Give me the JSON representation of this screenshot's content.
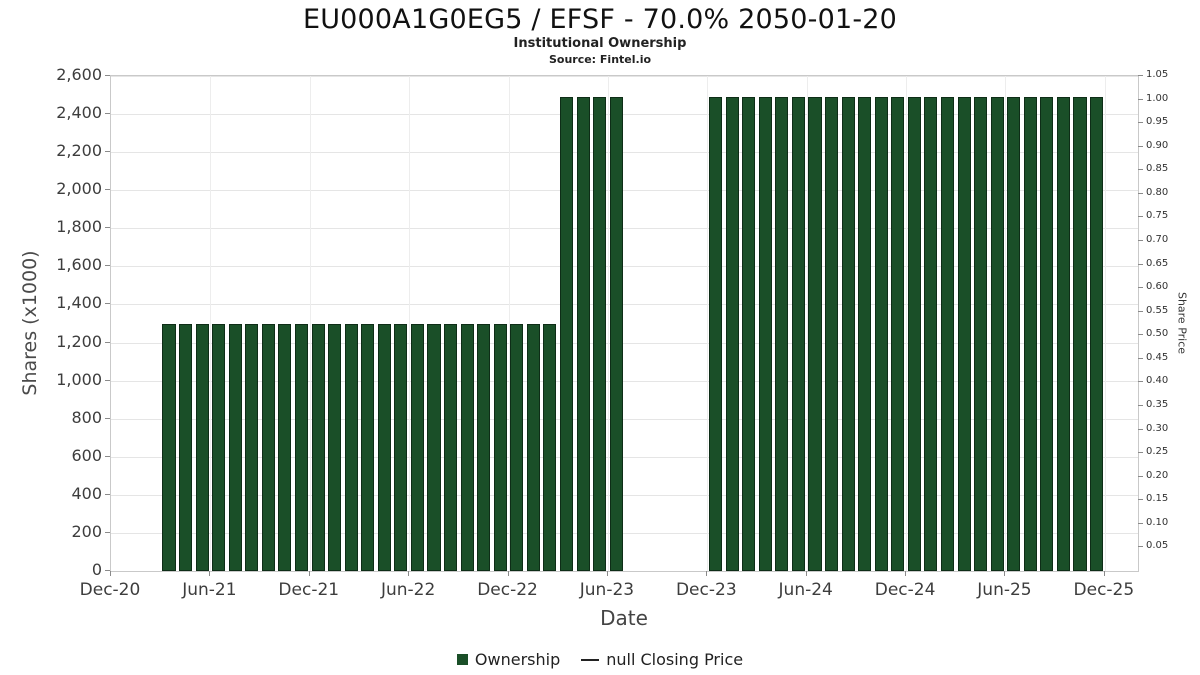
{
  "header": {
    "title": "EU000A1G0EG5 / EFSF - 70.0% 2050-01-20",
    "subtitle": "Institutional Ownership",
    "source": "Source: Fintel.io"
  },
  "axes": {
    "left_title": "Shares (x1000)",
    "right_title": "Share Price",
    "x_title": "Date"
  },
  "legend": {
    "ownership_label": "Ownership",
    "closing_price_label": "null Closing Price"
  },
  "colors": {
    "bar_fill": "#1a4f28",
    "bar_border": "#0e2d17",
    "legend_line": "#222222"
  },
  "chart_data": {
    "type": "bar",
    "title": "EU000A1G0EG5 / EFSF - 70.0% 2050-01-20",
    "subtitle": "Institutional Ownership",
    "source": "Source: Fintel.io",
    "xlabel": "Date",
    "ylabel_left": "Shares (x1000)",
    "ylabel_right": "Share Price",
    "y_left_max": 2600,
    "y_left_ticks": [
      "0",
      "200",
      "400",
      "600",
      "800",
      "1,000",
      "1,200",
      "1,400",
      "1,600",
      "1,800",
      "2,000",
      "2,200",
      "2,400",
      "2,600"
    ],
    "y_right_max": 1.05,
    "y_right_ticks": [
      "0.05",
      "0.10",
      "0.15",
      "0.20",
      "0.25",
      "0.30",
      "0.35",
      "0.40",
      "0.45",
      "0.50",
      "0.55",
      "0.60",
      "0.65",
      "0.70",
      "0.75",
      "0.80",
      "0.85",
      "0.90",
      "0.95",
      "1.00",
      "1.05"
    ],
    "x_ticks": [
      "Dec-20",
      "Jun-21",
      "Dec-21",
      "Jun-22",
      "Dec-22",
      "Jun-23",
      "Dec-23",
      "Jun-24",
      "Dec-24",
      "Jun-25",
      "Dec-25"
    ],
    "x_span_months": 62,
    "series": [
      {
        "name": "Ownership",
        "type": "bar",
        "points": [
          [
            "Mar-21",
            1300
          ],
          [
            "Apr-21",
            1300
          ],
          [
            "May-21",
            1300
          ],
          [
            "Jun-21",
            1300
          ],
          [
            "Jul-21",
            1300
          ],
          [
            "Aug-21",
            1300
          ],
          [
            "Sep-21",
            1300
          ],
          [
            "Oct-21",
            1300
          ],
          [
            "Nov-21",
            1300
          ],
          [
            "Dec-21",
            1300
          ],
          [
            "Jan-22",
            1300
          ],
          [
            "Feb-22",
            1300
          ],
          [
            "Mar-22",
            1300
          ],
          [
            "Apr-22",
            1300
          ],
          [
            "May-22",
            1300
          ],
          [
            "Jun-22",
            1300
          ],
          [
            "Jul-22",
            1300
          ],
          [
            "Aug-22",
            1300
          ],
          [
            "Sep-22",
            1300
          ],
          [
            "Oct-22",
            1300
          ],
          [
            "Nov-22",
            1300
          ],
          [
            "Dec-22",
            1300
          ],
          [
            "Jan-23",
            1300
          ],
          [
            "Feb-23",
            1300
          ],
          [
            "Mar-23",
            2490
          ],
          [
            "Apr-23",
            2490
          ],
          [
            "May-23",
            2490
          ],
          [
            "Jun-23",
            2490
          ],
          [
            "Dec-23",
            2490
          ],
          [
            "Jan-24",
            2490
          ],
          [
            "Feb-24",
            2490
          ],
          [
            "Mar-24",
            2490
          ],
          [
            "Apr-24",
            2490
          ],
          [
            "May-24",
            2490
          ],
          [
            "Jun-24",
            2490
          ],
          [
            "Jul-24",
            2490
          ],
          [
            "Aug-24",
            2490
          ],
          [
            "Sep-24",
            2490
          ],
          [
            "Oct-24",
            2490
          ],
          [
            "Nov-24",
            2490
          ],
          [
            "Dec-24",
            2490
          ],
          [
            "Jan-25",
            2490
          ],
          [
            "Feb-25",
            2490
          ],
          [
            "Mar-25",
            2490
          ],
          [
            "Apr-25",
            2490
          ],
          [
            "May-25",
            2490
          ],
          [
            "Jun-25",
            2490
          ],
          [
            "Jul-25",
            2490
          ],
          [
            "Aug-25",
            2490
          ],
          [
            "Sep-25",
            2490
          ],
          [
            "Oct-25",
            2490
          ],
          [
            "Nov-25",
            2490
          ]
        ]
      },
      {
        "name": "null Closing Price",
        "type": "line",
        "points": []
      }
    ]
  }
}
